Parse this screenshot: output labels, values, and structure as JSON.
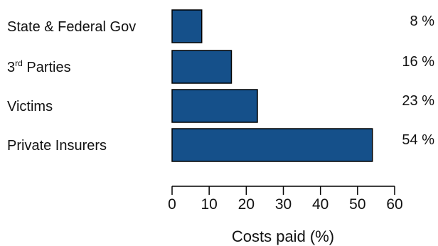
{
  "chart_data": {
    "type": "bar",
    "orientation": "horizontal",
    "categories": [
      {
        "label": "State & Federal Gov",
        "sup": ""
      },
      {
        "label": "3",
        "sup": "rd",
        "suffix": " Parties"
      },
      {
        "label": "Victims",
        "sup": ""
      },
      {
        "label": "Private Insurers",
        "sup": ""
      }
    ],
    "values": [
      8,
      16,
      23,
      54
    ],
    "value_labels": [
      "8 %",
      "16 %",
      "23 %",
      "54 %"
    ],
    "xlabel": "Costs paid (%)",
    "xlim": [
      0,
      60
    ],
    "xticks": [
      0,
      10,
      20,
      30,
      40,
      50,
      60
    ],
    "grid": false,
    "bar_color": "#15508a",
    "bar_edge_color": "#000000"
  }
}
